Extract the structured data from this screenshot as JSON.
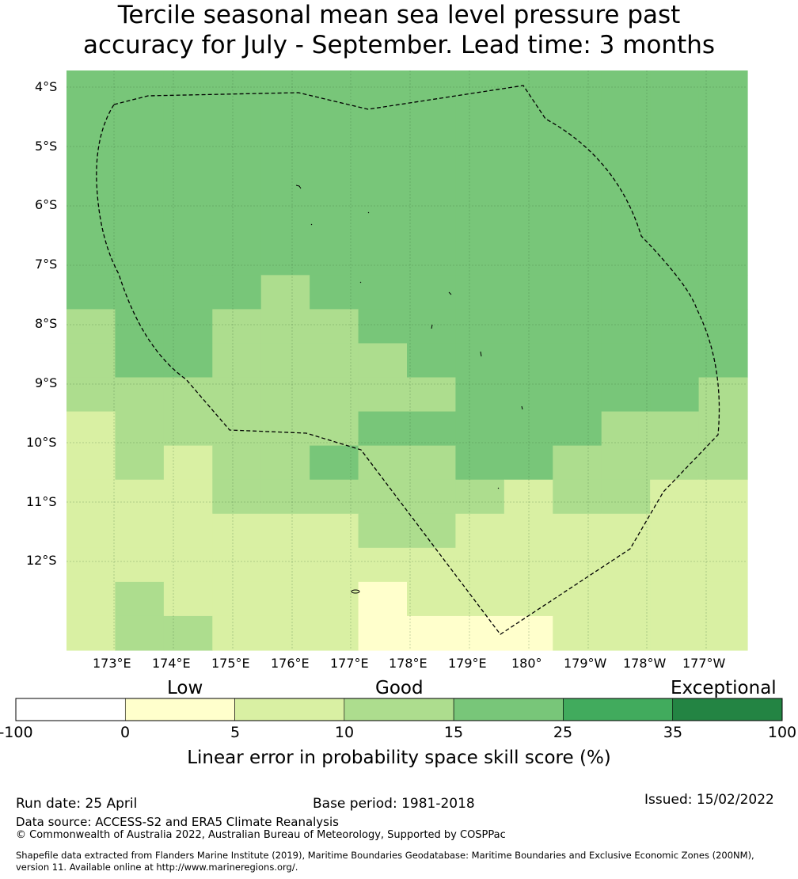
{
  "title": {
    "line1": "Tercile seasonal mean sea level pressure past",
    "line2": "accuracy for July - September. Lead time: 3 months"
  },
  "map": {
    "lat_labels": [
      "4°S",
      "5°S",
      "6°S",
      "7°S",
      "8°S",
      "9°S",
      "10°S",
      "11°S",
      "12°S"
    ],
    "lon_labels": [
      "173°E",
      "174°E",
      "175°E",
      "176°E",
      "177°E",
      "178°E",
      "179°E",
      "180°",
      "179°W",
      "178°W",
      "177°W"
    ],
    "grid_skill_pct": [
      [
        20,
        20,
        20,
        20,
        20,
        20,
        20,
        20,
        20,
        20,
        20,
        20,
        20,
        20
      ],
      [
        20,
        20,
        20,
        20,
        20,
        20,
        20,
        20,
        20,
        20,
        20,
        20,
        20,
        20
      ],
      [
        20,
        20,
        20,
        20,
        20,
        20,
        20,
        20,
        20,
        20,
        20,
        20,
        20,
        20
      ],
      [
        20,
        20,
        20,
        20,
        20,
        20,
        20,
        20,
        20,
        20,
        20,
        20,
        20,
        20
      ],
      [
        20,
        20,
        20,
        20,
        20,
        20,
        20,
        20,
        20,
        20,
        20,
        20,
        20,
        20
      ],
      [
        20,
        20,
        20,
        20,
        20,
        20,
        20,
        20,
        20,
        20,
        20,
        20,
        20,
        20
      ],
      [
        20,
        20,
        20,
        20,
        12,
        20,
        20,
        20,
        20,
        20,
        20,
        20,
        20,
        20
      ],
      [
        12,
        20,
        20,
        12,
        12,
        12,
        20,
        20,
        20,
        20,
        20,
        20,
        20,
        20
      ],
      [
        12,
        20,
        20,
        12,
        12,
        12,
        12,
        20,
        20,
        20,
        20,
        20,
        20,
        20
      ],
      [
        12,
        12,
        12,
        12,
        12,
        12,
        12,
        12,
        20,
        20,
        20,
        20,
        20,
        12
      ],
      [
        7,
        12,
        12,
        12,
        12,
        12,
        20,
        20,
        20,
        20,
        20,
        12,
        12,
        12
      ],
      [
        7,
        12,
        7,
        12,
        12,
        20,
        12,
        12,
        20,
        20,
        12,
        12,
        12,
        12
      ],
      [
        7,
        7,
        7,
        12,
        12,
        12,
        12,
        12,
        12,
        7,
        12,
        12,
        7,
        7
      ],
      [
        7,
        7,
        7,
        7,
        7,
        7,
        12,
        12,
        7,
        7,
        7,
        7,
        7,
        7
      ],
      [
        7,
        7,
        7,
        7,
        7,
        7,
        7,
        7,
        7,
        7,
        7,
        7,
        7,
        7
      ],
      [
        7,
        12,
        7,
        7,
        7,
        7,
        3,
        7,
        7,
        7,
        7,
        7,
        7,
        7
      ],
      [
        7,
        12,
        12,
        7,
        7,
        7,
        3,
        3,
        3,
        3,
        7,
        7,
        7,
        7
      ]
    ],
    "cell_colors": {
      "very_low": "#ffffcc",
      "low": "#d9f0a3",
      "good": "#addd8e",
      "high": "#78c679"
    }
  },
  "legend": {
    "categories": [
      "Low",
      "Good",
      "Exceptional"
    ],
    "ticks": [
      "-100",
      "0",
      "5",
      "10",
      "15",
      "25",
      "35",
      "100"
    ],
    "colors": [
      "#ffffff",
      "#ffffcc",
      "#d9f0a3",
      "#addd8e",
      "#78c679",
      "#41ab5d",
      "#238443"
    ],
    "title": "Linear error in probability space skill score (%)"
  },
  "footer": {
    "run_date": "Run date: 25 April",
    "base_period": "Base period: 1981-2018",
    "issued": "Issued: 15/02/2022",
    "data_source": "Data source: ACCESS-S2 and ERA5 Climate Reanalysis",
    "copyright": "© Commonwealth of Australia 2022, Australian Bureau of Meteorology, Supported by COSPPac",
    "shapefile_line1": "Shapefile data extracted from Flanders Marine Institute (2019), Maritime Boundaries Geodatabase: Maritime Boundaries and Exclusive Economic Zones (200NM),",
    "shapefile_line2": "version 11. Available online at http://www.marineregions.org/."
  }
}
